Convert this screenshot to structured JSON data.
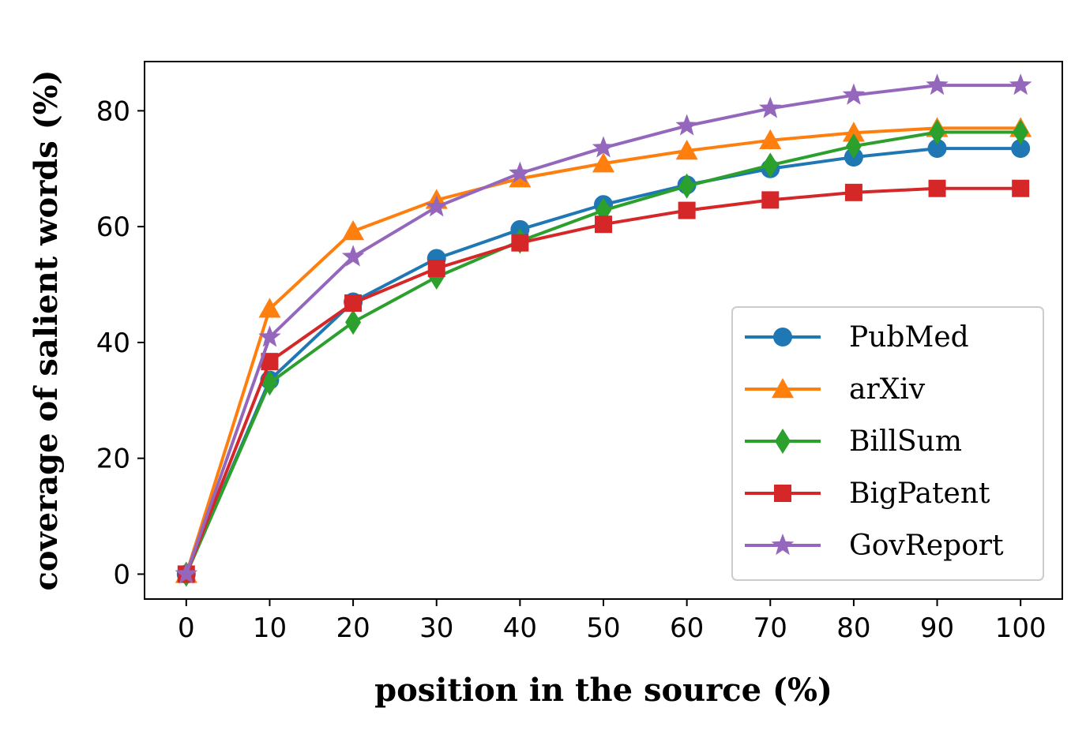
{
  "chart_data": {
    "type": "line",
    "title": "",
    "xlabel": "position in the source (%)",
    "ylabel": "coverage of salient words (%)",
    "x": [
      0,
      10,
      20,
      30,
      40,
      50,
      60,
      70,
      80,
      90,
      100
    ],
    "xticks": [
      0,
      10,
      20,
      30,
      40,
      50,
      60,
      70,
      80,
      90,
      100
    ],
    "yticks": [
      0,
      20,
      40,
      60,
      80
    ],
    "xlim": [
      -5,
      105
    ],
    "ylim": [
      -4.3,
      88.5
    ],
    "grid": false,
    "legend_position": "lower-right",
    "series": [
      {
        "name": "PubMed",
        "color": "#1f77b4",
        "marker": "circle",
        "values": [
          0,
          33.5,
          47,
          54.5,
          59.5,
          63.8,
          67.2,
          70,
          72,
          73.5,
          73.5
        ]
      },
      {
        "name": "arXiv",
        "color": "#ff7f0e",
        "marker": "triangle-up",
        "values": [
          0,
          45.8,
          59.2,
          64.6,
          68.3,
          70.9,
          73.1,
          74.9,
          76.2,
          77,
          77
        ]
      },
      {
        "name": "BillSum",
        "color": "#2ca02c",
        "marker": "thin-diamond",
        "values": [
          0,
          33,
          43.5,
          51.3,
          57.5,
          62.8,
          67,
          70.6,
          73.9,
          76.3,
          76.3
        ]
      },
      {
        "name": "BigPatent",
        "color": "#d62728",
        "marker": "square",
        "values": [
          0,
          36.7,
          46.8,
          52.8,
          57.2,
          60.4,
          62.8,
          64.6,
          65.9,
          66.6,
          66.6
        ]
      },
      {
        "name": "GovReport",
        "color": "#9467bd",
        "marker": "star",
        "values": [
          0,
          40.9,
          54.8,
          63.4,
          69.2,
          73.6,
          77.4,
          80.4,
          82.7,
          84.4,
          84.4
        ]
      }
    ]
  }
}
